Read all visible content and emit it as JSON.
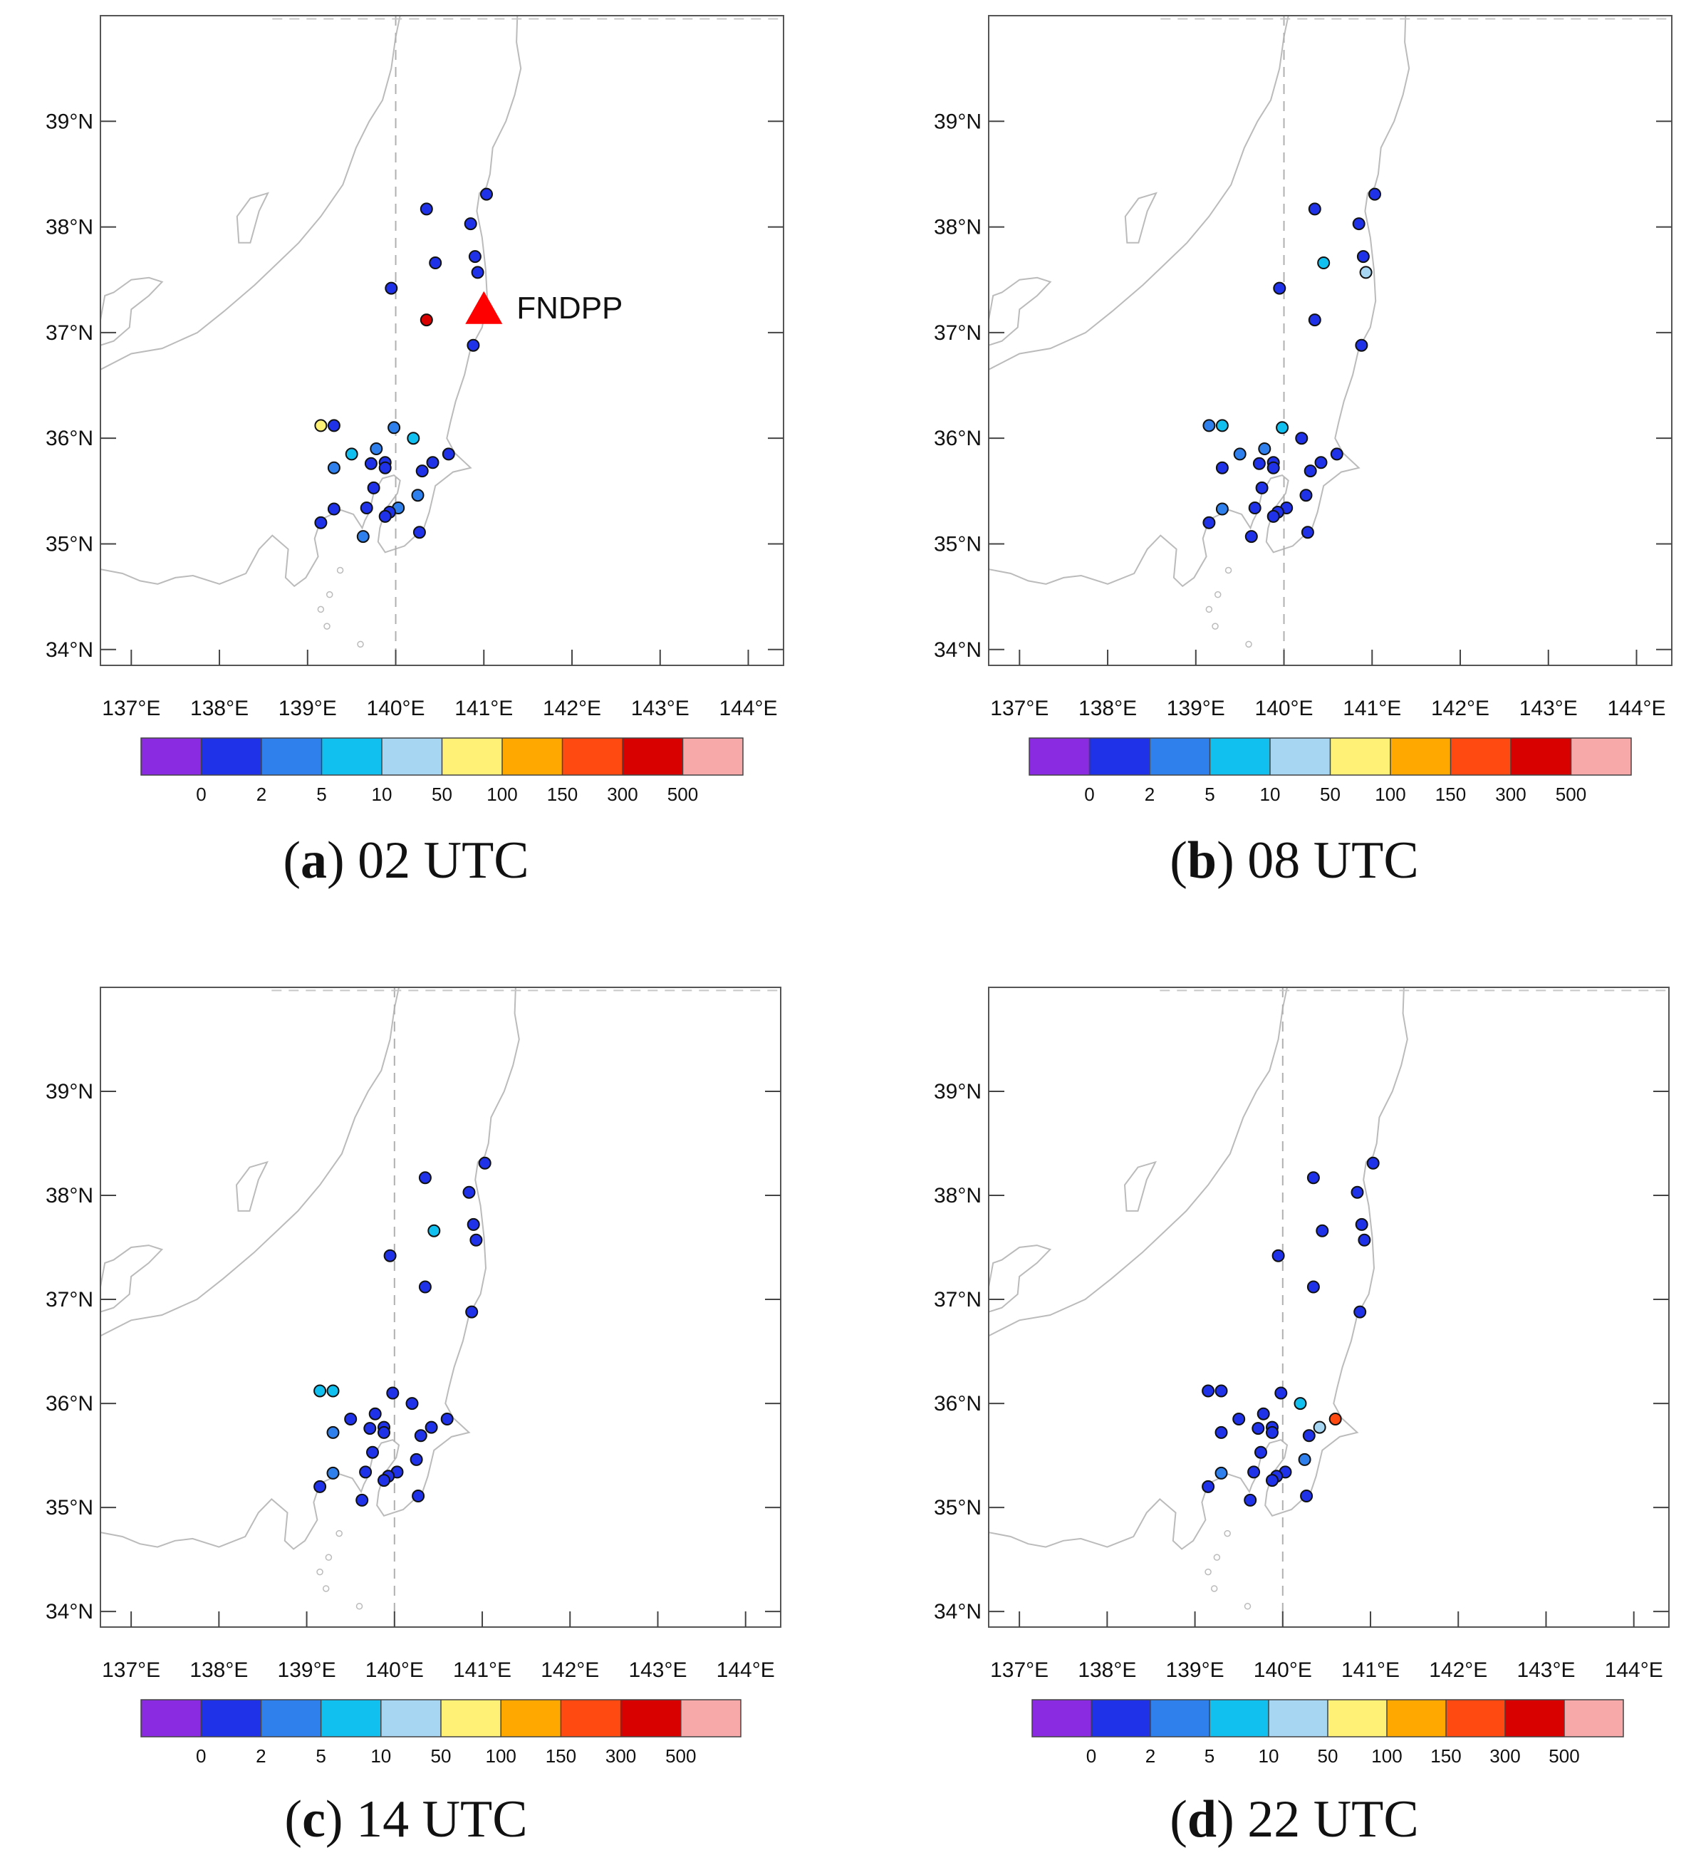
{
  "figure": {
    "axis_labels": {
      "lat": [
        "34°N",
        "35°N",
        "36°N",
        "37°N",
        "38°N",
        "39°N"
      ],
      "lon": [
        "137°E",
        "138°E",
        "139°E",
        "140°E",
        "141°E",
        "142°E",
        "143°E",
        "144°E"
      ]
    },
    "colorbar": {
      "tick_labels": [
        "0",
        "2",
        "5",
        "10",
        "50",
        "100",
        "150",
        "300",
        "500"
      ],
      "bin_colors": [
        "#8a2be2",
        "#1f32e8",
        "#2f80ed",
        "#12c0f0",
        "#a6d6f2",
        "#fff176",
        "#ffa800",
        "#ff4a12",
        "#d90000",
        "#f7a8a8"
      ]
    },
    "plant": {
      "label": "FNDPP",
      "lon": 141.0,
      "lat": 37.23,
      "marker_color": "#ff0000"
    }
  },
  "chart_data": [
    {
      "type": "scatter",
      "panel_letter": "a",
      "title": "02 UTC",
      "xlabel": "",
      "ylabel": "",
      "xlim": [
        136.65,
        144.4
      ],
      "ylim": [
        33.85,
        40.0
      ],
      "legend": "bottom colorbar",
      "show_plant": true,
      "stations": [
        {
          "lon": 141.03,
          "lat": 38.31,
          "bin": 1
        },
        {
          "lon": 140.35,
          "lat": 38.17,
          "bin": 1
        },
        {
          "lon": 140.85,
          "lat": 38.03,
          "bin": 1
        },
        {
          "lon": 140.9,
          "lat": 37.72,
          "bin": 1
        },
        {
          "lon": 140.45,
          "lat": 37.66,
          "bin": 1
        },
        {
          "lon": 140.93,
          "lat": 37.57,
          "bin": 1
        },
        {
          "lon": 139.95,
          "lat": 37.42,
          "bin": 1
        },
        {
          "lon": 140.35,
          "lat": 37.12,
          "bin": 8
        },
        {
          "lon": 140.88,
          "lat": 36.88,
          "bin": 1
        },
        {
          "lon": 139.15,
          "lat": 36.12,
          "bin": 5
        },
        {
          "lon": 139.3,
          "lat": 36.12,
          "bin": 1
        },
        {
          "lon": 139.98,
          "lat": 36.1,
          "bin": 2
        },
        {
          "lon": 140.2,
          "lat": 36.0,
          "bin": 3
        },
        {
          "lon": 139.78,
          "lat": 35.9,
          "bin": 2
        },
        {
          "lon": 139.5,
          "lat": 35.85,
          "bin": 3
        },
        {
          "lon": 140.6,
          "lat": 35.85,
          "bin": 1
        },
        {
          "lon": 139.72,
          "lat": 35.76,
          "bin": 1
        },
        {
          "lon": 139.88,
          "lat": 35.77,
          "bin": 1
        },
        {
          "lon": 140.42,
          "lat": 35.77,
          "bin": 1
        },
        {
          "lon": 139.88,
          "lat": 35.72,
          "bin": 1
        },
        {
          "lon": 139.3,
          "lat": 35.72,
          "bin": 2
        },
        {
          "lon": 140.3,
          "lat": 35.69,
          "bin": 1
        },
        {
          "lon": 139.75,
          "lat": 35.53,
          "bin": 1
        },
        {
          "lon": 140.25,
          "lat": 35.46,
          "bin": 2
        },
        {
          "lon": 139.3,
          "lat": 35.33,
          "bin": 1
        },
        {
          "lon": 139.67,
          "lat": 35.34,
          "bin": 1
        },
        {
          "lon": 140.03,
          "lat": 35.34,
          "bin": 2
        },
        {
          "lon": 139.93,
          "lat": 35.3,
          "bin": 1
        },
        {
          "lon": 139.88,
          "lat": 35.26,
          "bin": 1
        },
        {
          "lon": 139.15,
          "lat": 35.2,
          "bin": 1
        },
        {
          "lon": 140.27,
          "lat": 35.11,
          "bin": 1
        },
        {
          "lon": 139.63,
          "lat": 35.07,
          "bin": 2
        }
      ]
    },
    {
      "type": "scatter",
      "panel_letter": "b",
      "title": "08 UTC",
      "xlabel": "",
      "ylabel": "",
      "xlim": [
        136.65,
        144.4
      ],
      "ylim": [
        33.85,
        40.0
      ],
      "legend": "bottom colorbar",
      "show_plant": false,
      "stations": [
        {
          "lon": 141.03,
          "lat": 38.31,
          "bin": 1
        },
        {
          "lon": 140.35,
          "lat": 38.17,
          "bin": 1
        },
        {
          "lon": 140.85,
          "lat": 38.03,
          "bin": 1
        },
        {
          "lon": 140.9,
          "lat": 37.72,
          "bin": 1
        },
        {
          "lon": 140.45,
          "lat": 37.66,
          "bin": 3
        },
        {
          "lon": 140.93,
          "lat": 37.57,
          "bin": 4
        },
        {
          "lon": 139.95,
          "lat": 37.42,
          "bin": 1
        },
        {
          "lon": 140.35,
          "lat": 37.12,
          "bin": 1
        },
        {
          "lon": 140.88,
          "lat": 36.88,
          "bin": 1
        },
        {
          "lon": 139.15,
          "lat": 36.12,
          "bin": 2
        },
        {
          "lon": 139.3,
          "lat": 36.12,
          "bin": 3
        },
        {
          "lon": 139.98,
          "lat": 36.1,
          "bin": 3
        },
        {
          "lon": 140.2,
          "lat": 36.0,
          "bin": 1
        },
        {
          "lon": 139.78,
          "lat": 35.9,
          "bin": 2
        },
        {
          "lon": 139.5,
          "lat": 35.85,
          "bin": 2
        },
        {
          "lon": 140.6,
          "lat": 35.85,
          "bin": 1
        },
        {
          "lon": 139.72,
          "lat": 35.76,
          "bin": 1
        },
        {
          "lon": 139.88,
          "lat": 35.77,
          "bin": 1
        },
        {
          "lon": 140.42,
          "lat": 35.77,
          "bin": 1
        },
        {
          "lon": 139.88,
          "lat": 35.72,
          "bin": 1
        },
        {
          "lon": 139.3,
          "lat": 35.72,
          "bin": 1
        },
        {
          "lon": 140.3,
          "lat": 35.69,
          "bin": 1
        },
        {
          "lon": 139.75,
          "lat": 35.53,
          "bin": 1
        },
        {
          "lon": 140.25,
          "lat": 35.46,
          "bin": 1
        },
        {
          "lon": 139.3,
          "lat": 35.33,
          "bin": 2
        },
        {
          "lon": 139.67,
          "lat": 35.34,
          "bin": 1
        },
        {
          "lon": 140.03,
          "lat": 35.34,
          "bin": 1
        },
        {
          "lon": 139.93,
          "lat": 35.3,
          "bin": 1
        },
        {
          "lon": 139.88,
          "lat": 35.26,
          "bin": 1
        },
        {
          "lon": 139.15,
          "lat": 35.2,
          "bin": 1
        },
        {
          "lon": 140.27,
          "lat": 35.11,
          "bin": 1
        },
        {
          "lon": 139.63,
          "lat": 35.07,
          "bin": 1
        }
      ]
    },
    {
      "type": "scatter",
      "panel_letter": "c",
      "title": "14 UTC",
      "xlabel": "",
      "ylabel": "",
      "xlim": [
        136.65,
        144.4
      ],
      "ylim": [
        33.85,
        40.0
      ],
      "legend": "bottom colorbar",
      "show_plant": false,
      "stations": [
        {
          "lon": 141.03,
          "lat": 38.31,
          "bin": 1
        },
        {
          "lon": 140.35,
          "lat": 38.17,
          "bin": 1
        },
        {
          "lon": 140.85,
          "lat": 38.03,
          "bin": 1
        },
        {
          "lon": 140.9,
          "lat": 37.72,
          "bin": 1
        },
        {
          "lon": 140.45,
          "lat": 37.66,
          "bin": 3
        },
        {
          "lon": 140.93,
          "lat": 37.57,
          "bin": 1
        },
        {
          "lon": 139.95,
          "lat": 37.42,
          "bin": 1
        },
        {
          "lon": 140.35,
          "lat": 37.12,
          "bin": 1
        },
        {
          "lon": 140.88,
          "lat": 36.88,
          "bin": 1
        },
        {
          "lon": 139.15,
          "lat": 36.12,
          "bin": 3
        },
        {
          "lon": 139.3,
          "lat": 36.12,
          "bin": 3
        },
        {
          "lon": 139.98,
          "lat": 36.1,
          "bin": 1
        },
        {
          "lon": 140.2,
          "lat": 36.0,
          "bin": 1
        },
        {
          "lon": 139.78,
          "lat": 35.9,
          "bin": 1
        },
        {
          "lon": 139.5,
          "lat": 35.85,
          "bin": 1
        },
        {
          "lon": 140.6,
          "lat": 35.85,
          "bin": 1
        },
        {
          "lon": 139.72,
          "lat": 35.76,
          "bin": 1
        },
        {
          "lon": 139.88,
          "lat": 35.77,
          "bin": 1
        },
        {
          "lon": 140.42,
          "lat": 35.77,
          "bin": 1
        },
        {
          "lon": 139.88,
          "lat": 35.72,
          "bin": 1
        },
        {
          "lon": 139.3,
          "lat": 35.72,
          "bin": 2
        },
        {
          "lon": 140.3,
          "lat": 35.69,
          "bin": 1
        },
        {
          "lon": 139.75,
          "lat": 35.53,
          "bin": 1
        },
        {
          "lon": 140.25,
          "lat": 35.46,
          "bin": 1
        },
        {
          "lon": 139.3,
          "lat": 35.33,
          "bin": 2
        },
        {
          "lon": 139.67,
          "lat": 35.34,
          "bin": 1
        },
        {
          "lon": 140.03,
          "lat": 35.34,
          "bin": 1
        },
        {
          "lon": 139.93,
          "lat": 35.3,
          "bin": 1
        },
        {
          "lon": 139.88,
          "lat": 35.26,
          "bin": 1
        },
        {
          "lon": 139.15,
          "lat": 35.2,
          "bin": 1
        },
        {
          "lon": 140.27,
          "lat": 35.11,
          "bin": 1
        },
        {
          "lon": 139.63,
          "lat": 35.07,
          "bin": 1
        }
      ]
    },
    {
      "type": "scatter",
      "panel_letter": "d",
      "title": "22 UTC",
      "xlabel": "",
      "ylabel": "",
      "xlim": [
        136.65,
        144.4
      ],
      "ylim": [
        33.85,
        40.0
      ],
      "legend": "bottom colorbar",
      "show_plant": false,
      "stations": [
        {
          "lon": 141.03,
          "lat": 38.31,
          "bin": 1
        },
        {
          "lon": 140.35,
          "lat": 38.17,
          "bin": 1
        },
        {
          "lon": 140.85,
          "lat": 38.03,
          "bin": 1
        },
        {
          "lon": 140.9,
          "lat": 37.72,
          "bin": 1
        },
        {
          "lon": 140.45,
          "lat": 37.66,
          "bin": 1
        },
        {
          "lon": 140.93,
          "lat": 37.57,
          "bin": 1
        },
        {
          "lon": 139.95,
          "lat": 37.42,
          "bin": 1
        },
        {
          "lon": 140.35,
          "lat": 37.12,
          "bin": 1
        },
        {
          "lon": 140.88,
          "lat": 36.88,
          "bin": 1
        },
        {
          "lon": 139.15,
          "lat": 36.12,
          "bin": 1
        },
        {
          "lon": 139.3,
          "lat": 36.12,
          "bin": 1
        },
        {
          "lon": 139.98,
          "lat": 36.1,
          "bin": 1
        },
        {
          "lon": 140.2,
          "lat": 36.0,
          "bin": 3
        },
        {
          "lon": 139.78,
          "lat": 35.9,
          "bin": 1
        },
        {
          "lon": 139.5,
          "lat": 35.85,
          "bin": 1
        },
        {
          "lon": 140.6,
          "lat": 35.85,
          "bin": 7
        },
        {
          "lon": 139.72,
          "lat": 35.76,
          "bin": 1
        },
        {
          "lon": 139.88,
          "lat": 35.77,
          "bin": 1
        },
        {
          "lon": 140.42,
          "lat": 35.77,
          "bin": 4
        },
        {
          "lon": 139.88,
          "lat": 35.72,
          "bin": 1
        },
        {
          "lon": 139.3,
          "lat": 35.72,
          "bin": 1
        },
        {
          "lon": 140.3,
          "lat": 35.69,
          "bin": 1
        },
        {
          "lon": 139.75,
          "lat": 35.53,
          "bin": 1
        },
        {
          "lon": 140.25,
          "lat": 35.46,
          "bin": 2
        },
        {
          "lon": 139.3,
          "lat": 35.33,
          "bin": 2
        },
        {
          "lon": 139.67,
          "lat": 35.34,
          "bin": 1
        },
        {
          "lon": 140.03,
          "lat": 35.34,
          "bin": 1
        },
        {
          "lon": 139.93,
          "lat": 35.3,
          "bin": 1
        },
        {
          "lon": 139.88,
          "lat": 35.26,
          "bin": 1
        },
        {
          "lon": 139.15,
          "lat": 35.2,
          "bin": 1
        },
        {
          "lon": 140.27,
          "lat": 35.11,
          "bin": 1
        },
        {
          "lon": 139.63,
          "lat": 35.07,
          "bin": 1
        }
      ]
    }
  ]
}
